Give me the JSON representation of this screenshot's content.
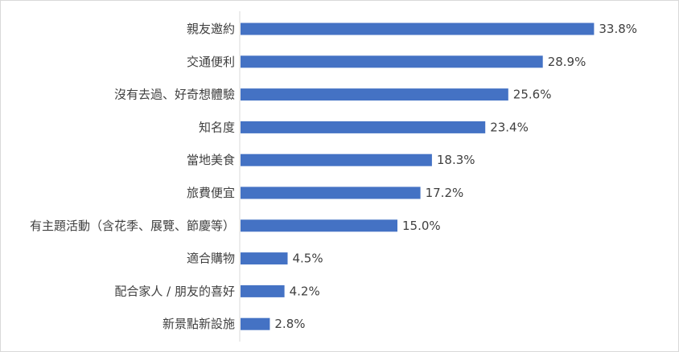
{
  "chart_data": {
    "type": "bar",
    "orientation": "horizontal",
    "categories": [
      "親友邀約",
      "交通便利",
      "沒有去過、好奇想體驗",
      "知名度",
      "當地美食",
      "旅費便宜",
      "有主題活動（含花季、展覽、節慶等）",
      "適合購物",
      "配合家人 / 朋友的喜好",
      "新景點新設施"
    ],
    "values": [
      33.8,
      28.9,
      25.6,
      23.4,
      18.3,
      17.2,
      15.0,
      4.5,
      4.2,
      2.8
    ],
    "value_labels": [
      "33.8%",
      "28.9%",
      "25.6%",
      "23.4%",
      "18.3%",
      "17.2%",
      "15.0%",
      "4.5%",
      "4.2%",
      "2.8%"
    ],
    "bar_color": "#4472c4",
    "xlim": [
      0,
      40
    ],
    "grid": false,
    "legend": "none"
  }
}
